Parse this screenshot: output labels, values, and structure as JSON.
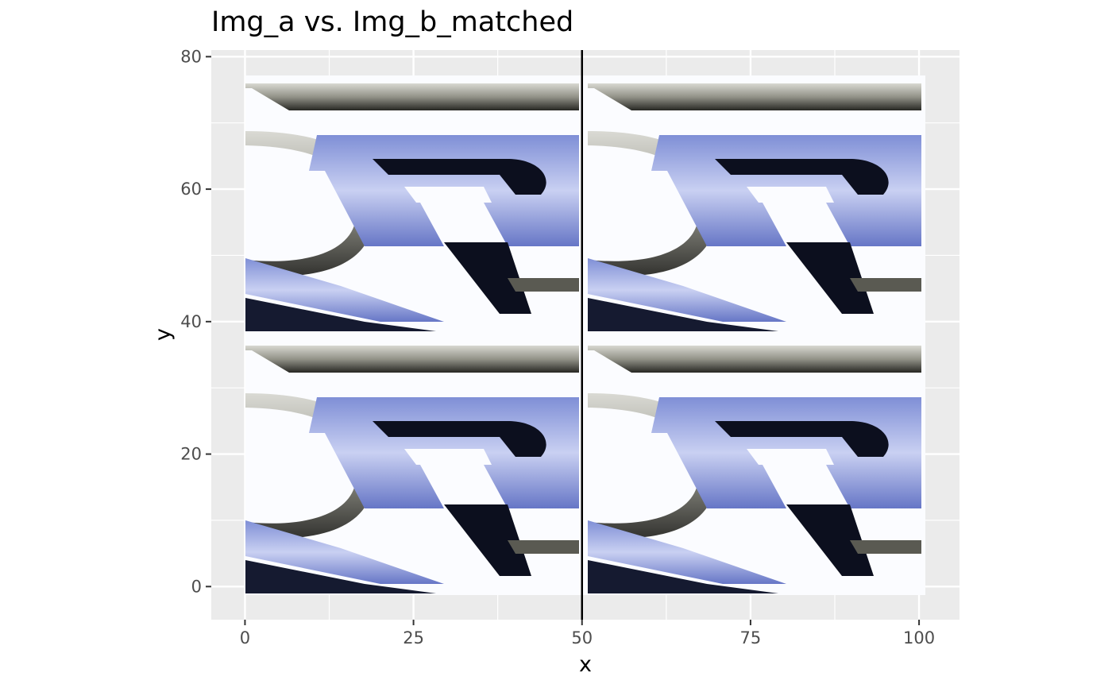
{
  "chart_data": {
    "type": "image",
    "title": "Img_a vs. Img_b_matched",
    "xlabel": "x",
    "ylabel": "y",
    "xlim": [
      -5,
      106
    ],
    "ylim": [
      -5,
      81
    ],
    "x_ticks": [
      0,
      25,
      50,
      75,
      100
    ],
    "y_ticks": [
      0,
      20,
      40,
      60,
      80
    ],
    "grid": true,
    "panels": [
      {
        "name": "Img_a",
        "x_range": [
          0,
          50
        ],
        "y_range": [
          0,
          77
        ]
      },
      {
        "name": "Img_b_matched",
        "x_range": [
          50,
          101
        ],
        "y_range": [
          0,
          77
        ]
      }
    ],
    "divider": {
      "x": 50
    },
    "colors": {
      "panel_bg": "#EBEBEB",
      "grid": "#FFFFFF",
      "image_bg": "#FCFDFF",
      "periwinkle": "#8E9CD8",
      "periwinkle_light": "#C4CCEE",
      "ink": "#0C0F1E",
      "grey_band": "#9C9C92",
      "axis_text": "#4D4D4D"
    }
  }
}
